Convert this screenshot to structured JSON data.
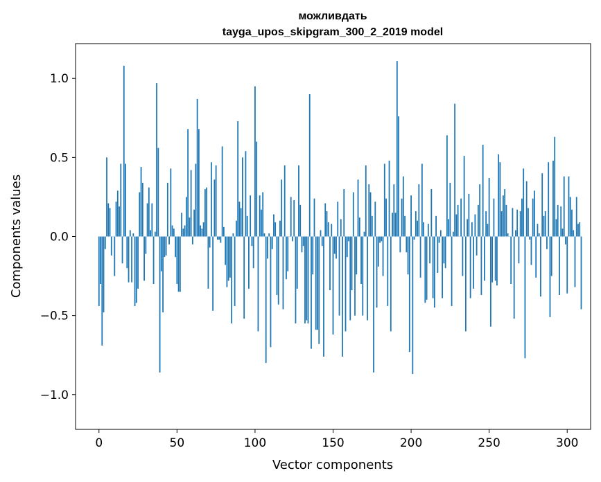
{
  "chart_data": {
    "type": "bar",
    "title": "можливдать",
    "subtitle": "tayga_upos_skipgram_300_2_2019 model",
    "xlabel": "Vector components",
    "ylabel": "Components values",
    "xlim": [
      -15,
      315
    ],
    "ylim": [
      -1.22,
      1.22
    ],
    "xticks": [
      0,
      50,
      100,
      150,
      200,
      250,
      300
    ],
    "xtick_labels": [
      "0",
      "50",
      "100",
      "150",
      "200",
      "250",
      "300"
    ],
    "yticks": [
      -1.0,
      -0.5,
      0.0,
      0.5,
      1.0
    ],
    "ytick_labels": [
      "−1.0",
      "−0.5",
      "0.0",
      "0.5",
      "1.0"
    ],
    "bar_color": "#1f77b4",
    "grid": false,
    "legend": "none",
    "values": [
      -0.44,
      -0.3,
      -0.69,
      -0.48,
      -0.08,
      0.5,
      0.21,
      0.18,
      -0.12,
      0.0,
      -0.25,
      0.22,
      0.29,
      0.19,
      0.46,
      -0.17,
      1.08,
      0.46,
      -0.2,
      -0.29,
      0.04,
      -0.29,
      0.02,
      -0.44,
      -0.42,
      -0.33,
      0.28,
      0.44,
      0.34,
      -0.28,
      -0.11,
      0.21,
      0.31,
      0.04,
      0.21,
      -0.3,
      0.03,
      0.97,
      0.56,
      -0.86,
      -0.22,
      -0.48,
      -0.13,
      -0.12,
      0.34,
      -0.05,
      0.43,
      0.07,
      0.05,
      -0.13,
      -0.3,
      -0.35,
      -0.35,
      0.15,
      0.05,
      0.07,
      0.25,
      0.68,
      0.12,
      0.42,
      -0.05,
      0.17,
      0.46,
      0.87,
      0.68,
      0.07,
      0.05,
      0.09,
      0.3,
      0.31,
      -0.33,
      -0.07,
      0.47,
      -0.47,
      0.36,
      0.45,
      -0.02,
      -0.02,
      -0.04,
      0.57,
      0.06,
      -0.18,
      -0.32,
      -0.28,
      -0.26,
      -0.55,
      0.02,
      -0.44,
      0.1,
      0.73,
      0.22,
      0.18,
      0.5,
      -0.52,
      0.54,
      0.13,
      -0.33,
      0.26,
      -0.06,
      -0.2,
      0.95,
      0.6,
      -0.6,
      0.26,
      0.17,
      0.28,
      0.02,
      -0.8,
      -0.14,
      0.02,
      -0.7,
      -0.08,
      0.14,
      0.09,
      -0.37,
      -0.43,
      0.1,
      0.36,
      -0.46,
      0.45,
      -0.27,
      -0.22,
      0.0,
      0.25,
      -0.03,
      0.23,
      -0.55,
      -0.33,
      0.45,
      0.2,
      -0.1,
      -0.06,
      -0.55,
      -0.53,
      -0.55,
      0.9,
      -0.71,
      -0.24,
      0.24,
      -0.59,
      -0.59,
      -0.68,
      0.04,
      -0.06,
      -0.76,
      0.21,
      0.16,
      0.09,
      -0.34,
      0.08,
      -0.62,
      -0.11,
      -0.14,
      0.22,
      -0.5,
      0.11,
      -0.76,
      0.3,
      -0.6,
      -0.13,
      -0.03,
      -0.53,
      -0.34,
      0.28,
      -0.5,
      -0.24,
      0.36,
      0.12,
      -0.3,
      -0.5,
      0.03,
      0.45,
      -0.53,
      0.33,
      0.28,
      0.13,
      -0.86,
      0.22,
      -0.45,
      -0.19,
      -0.04,
      -0.03,
      -0.25,
      0.46,
      0.24,
      -0.44,
      0.48,
      -0.6,
      0.15,
      0.33,
      0.15,
      1.11,
      0.76,
      -0.1,
      0.24,
      0.38,
      0.13,
      -0.1,
      -0.24,
      -0.73,
      0.26,
      -0.87,
      -0.02,
      0.16,
      0.1,
      0.33,
      -0.26,
      0.46,
      0.09,
      -0.42,
      -0.4,
      0.08,
      -0.17,
      0.3,
      -0.39,
      -0.45,
      0.13,
      -0.23,
      -0.04,
      0.04,
      -0.39,
      -0.17,
      -0.2,
      0.64,
      0.11,
      0.34,
      -0.44,
      0.03,
      0.84,
      0.14,
      0.2,
      0.0,
      0.24,
      -0.25,
      0.51,
      -0.6,
      0.11,
      0.27,
      -0.39,
      0.09,
      -0.33,
      0.14,
      -0.12,
      0.2,
      0.33,
      -0.37,
      0.58,
      -0.28,
      0.16,
      0.08,
      0.37,
      -0.57,
      -0.29,
      0.24,
      -0.28,
      -0.31,
      0.52,
      0.47,
      0.16,
      0.26,
      0.3,
      0.2,
      0.02,
      0.0,
      -0.3,
      0.18,
      -0.52,
      0.04,
      0.17,
      -0.17,
      0.16,
      0.24,
      0.43,
      -0.77,
      0.35,
      0.18,
      -0.02,
      -0.18,
      0.24,
      0.29,
      -0.26,
      0.08,
      0.02,
      -0.38,
      0.4,
      0.13,
      0.16,
      -0.08,
      0.47,
      -0.51,
      -0.25,
      0.48,
      0.63,
      0.11,
      0.2,
      -0.37,
      0.19,
      0.05,
      0.38,
      -0.05,
      -0.36,
      0.38,
      0.25,
      0.17,
      0.04,
      -0.32,
      0.25,
      0.08,
      0.09,
      -0.46
    ]
  }
}
